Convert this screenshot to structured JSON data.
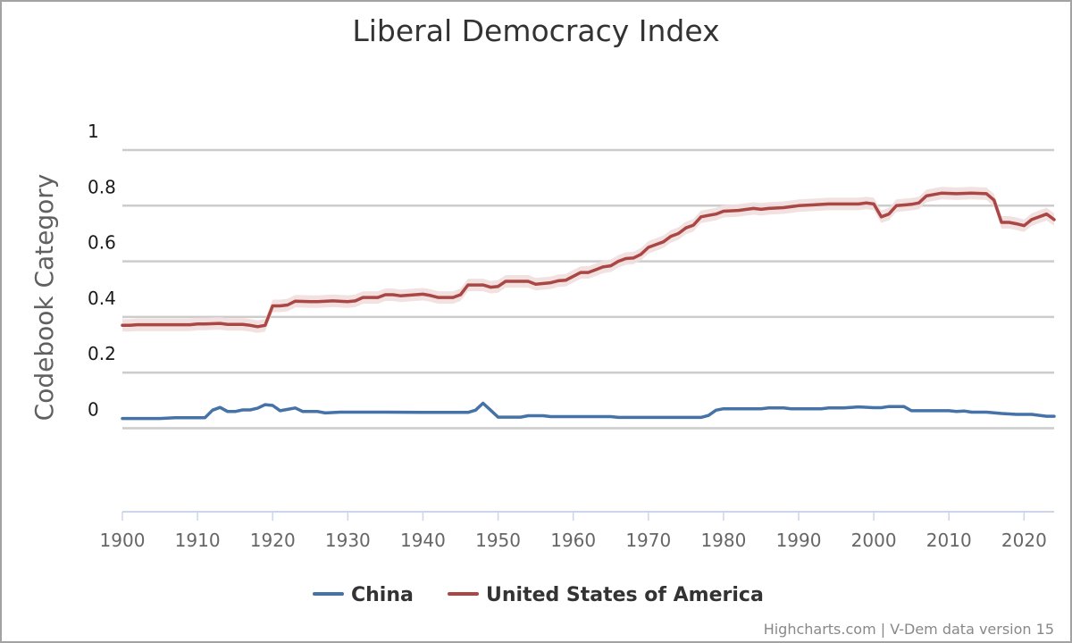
{
  "chart_data": {
    "type": "line",
    "title": "Liberal Democracy Index",
    "ylabel": "Codebook Category",
    "xlabel": "",
    "xlim": [
      1900,
      2024
    ],
    "ylim": [
      -0.3,
      1
    ],
    "y_ticks": [
      0,
      0.2,
      0.4,
      0.6,
      0.8,
      1
    ],
    "y_tick_labels": [
      "0",
      "0.2",
      "0.4",
      "0.6",
      "0.8",
      "1"
    ],
    "x_ticks": [
      1900,
      1910,
      1920,
      1930,
      1940,
      1950,
      1960,
      1970,
      1980,
      1990,
      2000,
      2010,
      2020
    ],
    "x_tick_labels": [
      "1900",
      "1910",
      "1920",
      "1930",
      "1940",
      "1950",
      "1960",
      "1970",
      "1980",
      "1990",
      "2000",
      "2010",
      "2020"
    ],
    "legend_position": "bottom-center",
    "series": [
      {
        "name": "China",
        "color": "#4572a7",
        "band": false,
        "points": [
          [
            1900,
            0.035
          ],
          [
            1905,
            0.035
          ],
          [
            1907,
            0.038
          ],
          [
            1911,
            0.038
          ],
          [
            1912,
            0.065
          ],
          [
            1913,
            0.075
          ],
          [
            1914,
            0.06
          ],
          [
            1915,
            0.06
          ],
          [
            1916,
            0.066
          ],
          [
            1917,
            0.066
          ],
          [
            1918,
            0.072
          ],
          [
            1919,
            0.085
          ],
          [
            1920,
            0.082
          ],
          [
            1921,
            0.063
          ],
          [
            1922,
            0.068
          ],
          [
            1923,
            0.073
          ],
          [
            1924,
            0.06
          ],
          [
            1926,
            0.06
          ],
          [
            1927,
            0.055
          ],
          [
            1929,
            0.058
          ],
          [
            1935,
            0.058
          ],
          [
            1940,
            0.057
          ],
          [
            1946,
            0.057
          ],
          [
            1947,
            0.065
          ],
          [
            1948,
            0.09
          ],
          [
            1949,
            0.065
          ],
          [
            1950,
            0.04
          ],
          [
            1953,
            0.04
          ],
          [
            1954,
            0.045
          ],
          [
            1956,
            0.045
          ],
          [
            1957,
            0.042
          ],
          [
            1965,
            0.042
          ],
          [
            1966,
            0.039
          ],
          [
            1977,
            0.039
          ],
          [
            1978,
            0.046
          ],
          [
            1979,
            0.065
          ],
          [
            1980,
            0.07
          ],
          [
            1985,
            0.07
          ],
          [
            1986,
            0.073
          ],
          [
            1988,
            0.073
          ],
          [
            1989,
            0.07
          ],
          [
            1993,
            0.07
          ],
          [
            1994,
            0.073
          ],
          [
            1996,
            0.073
          ],
          [
            1998,
            0.077
          ],
          [
            2000,
            0.074
          ],
          [
            2001,
            0.074
          ],
          [
            2002,
            0.078
          ],
          [
            2004,
            0.078
          ],
          [
            2005,
            0.063
          ],
          [
            2010,
            0.063
          ],
          [
            2011,
            0.06
          ],
          [
            2012,
            0.062
          ],
          [
            2013,
            0.058
          ],
          [
            2015,
            0.058
          ],
          [
            2017,
            0.053
          ],
          [
            2019,
            0.05
          ],
          [
            2021,
            0.05
          ],
          [
            2023,
            0.043
          ],
          [
            2024,
            0.043
          ]
        ]
      },
      {
        "name": "United States of America",
        "color": "#aa4643",
        "band": true,
        "band_color": "#f1dede",
        "points": [
          [
            1900,
            0.37
          ],
          [
            1901,
            0.37
          ],
          [
            1902,
            0.372
          ],
          [
            1909,
            0.372
          ],
          [
            1910,
            0.375
          ],
          [
            1911,
            0.375
          ],
          [
            1913,
            0.377
          ],
          [
            1914,
            0.373
          ],
          [
            1916,
            0.373
          ],
          [
            1917,
            0.37
          ],
          [
            1918,
            0.365
          ],
          [
            1919,
            0.37
          ],
          [
            1920,
            0.44
          ],
          [
            1921,
            0.44
          ],
          [
            1922,
            0.443
          ],
          [
            1923,
            0.457
          ],
          [
            1925,
            0.455
          ],
          [
            1926,
            0.455
          ],
          [
            1928,
            0.458
          ],
          [
            1930,
            0.455
          ],
          [
            1931,
            0.458
          ],
          [
            1932,
            0.47
          ],
          [
            1934,
            0.47
          ],
          [
            1935,
            0.48
          ],
          [
            1936,
            0.48
          ],
          [
            1937,
            0.476
          ],
          [
            1940,
            0.482
          ],
          [
            1941,
            0.477
          ],
          [
            1942,
            0.47
          ],
          [
            1944,
            0.47
          ],
          [
            1945,
            0.48
          ],
          [
            1946,
            0.515
          ],
          [
            1948,
            0.515
          ],
          [
            1949,
            0.507
          ],
          [
            1950,
            0.51
          ],
          [
            1951,
            0.528
          ],
          [
            1954,
            0.528
          ],
          [
            1955,
            0.518
          ],
          [
            1957,
            0.523
          ],
          [
            1958,
            0.53
          ],
          [
            1959,
            0.532
          ],
          [
            1960,
            0.546
          ],
          [
            1961,
            0.56
          ],
          [
            1962,
            0.56
          ],
          [
            1963,
            0.57
          ],
          [
            1964,
            0.58
          ],
          [
            1965,
            0.584
          ],
          [
            1966,
            0.6
          ],
          [
            1967,
            0.61
          ],
          [
            1968,
            0.612
          ],
          [
            1969,
            0.625
          ],
          [
            1970,
            0.65
          ],
          [
            1971,
            0.66
          ],
          [
            1972,
            0.67
          ],
          [
            1973,
            0.69
          ],
          [
            1974,
            0.7
          ],
          [
            1975,
            0.72
          ],
          [
            1976,
            0.73
          ],
          [
            1977,
            0.76
          ],
          [
            1978,
            0.765
          ],
          [
            1979,
            0.77
          ],
          [
            1980,
            0.78
          ],
          [
            1982,
            0.783
          ],
          [
            1984,
            0.79
          ],
          [
            1985,
            0.787
          ],
          [
            1986,
            0.79
          ],
          [
            1988,
            0.793
          ],
          [
            1990,
            0.8
          ],
          [
            1992,
            0.803
          ],
          [
            1994,
            0.806
          ],
          [
            1998,
            0.806
          ],
          [
            1999,
            0.81
          ],
          [
            2000,
            0.806
          ],
          [
            2001,
            0.76
          ],
          [
            2002,
            0.77
          ],
          [
            2003,
            0.8
          ],
          [
            2005,
            0.805
          ],
          [
            2006,
            0.81
          ],
          [
            2007,
            0.835
          ],
          [
            2008,
            0.84
          ],
          [
            2009,
            0.845
          ],
          [
            2011,
            0.843
          ],
          [
            2013,
            0.845
          ],
          [
            2015,
            0.843
          ],
          [
            2016,
            0.82
          ],
          [
            2017,
            0.74
          ],
          [
            2018,
            0.74
          ],
          [
            2019,
            0.735
          ],
          [
            2020,
            0.728
          ],
          [
            2021,
            0.75
          ],
          [
            2023,
            0.77
          ],
          [
            2024,
            0.75
          ]
        ]
      }
    ],
    "credits": "Highcharts.com | V-Dem data version 15"
  }
}
